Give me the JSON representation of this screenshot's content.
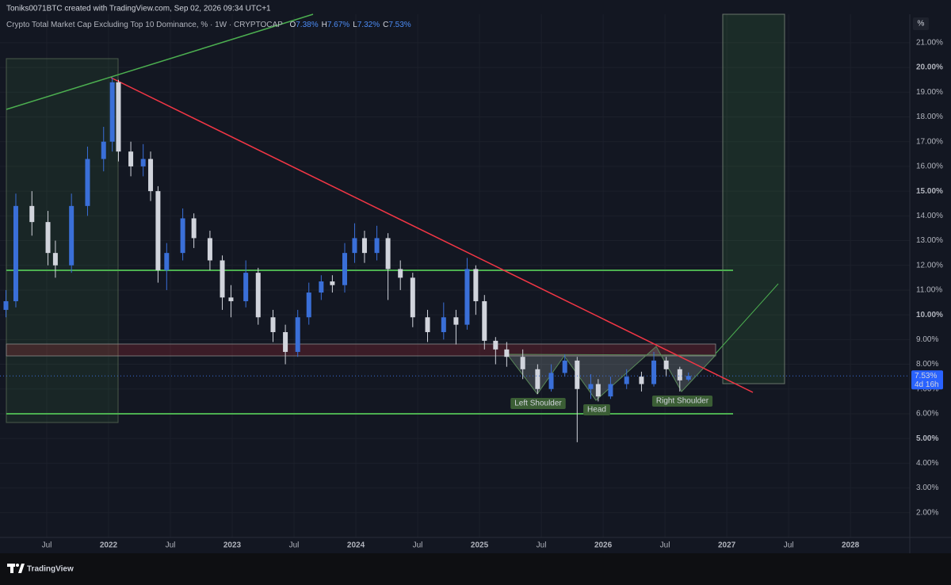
{
  "header": {
    "author_line": "Toniks0071BTC created with TradingView.com, Sep 02, 2026 09:34 UTC+1",
    "logo": "TradingView"
  },
  "chart_data": {
    "type": "candlestick",
    "title": "Crypto Total Market Cap Excluding Top 10 Dominance, % · 1W · CRYPTOCAP",
    "ohlc_legend": [
      {
        "key": "O",
        "text": "7.38%"
      },
      {
        "key": "H",
        "text": "7.67%"
      },
      {
        "key": "L",
        "text": "7.32%"
      },
      {
        "key": "C",
        "text": "7.53%"
      }
    ],
    "y_unit": "%",
    "x": [
      2021.17,
      2021.25,
      2021.38,
      2021.51,
      2021.57,
      2021.7,
      2021.83,
      2021.96,
      2022.03,
      2022.08,
      2022.18,
      2022.28,
      2022.34,
      2022.4,
      2022.47,
      2022.6,
      2022.69,
      2022.82,
      2022.92,
      2022.99,
      2023.11,
      2023.21,
      2023.33,
      2023.43,
      2023.53,
      2023.62,
      2023.72,
      2023.81,
      2023.91,
      2023.99,
      2024.07,
      2024.17,
      2024.26,
      2024.36,
      2024.46,
      2024.58,
      2024.71,
      2024.81,
      2024.9,
      2024.97,
      2025.04,
      2025.13,
      2025.22,
      2025.35,
      2025.47,
      2025.58,
      2025.69,
      2025.79,
      2025.9,
      2025.96,
      2026.06,
      2026.19,
      2026.31,
      2026.41,
      2026.51,
      2026.62,
      2026.69
    ],
    "open": [
      10.2,
      10.55,
      14.4,
      13.75,
      12.5,
      12.0,
      14.4,
      16.3,
      17.0,
      19.4,
      16.6,
      16.0,
      16.3,
      15.0,
      11.8,
      12.5,
      13.9,
      13.1,
      12.2,
      10.7,
      10.55,
      11.7,
      9.9,
      9.3,
      8.5,
      9.9,
      10.9,
      11.35,
      11.2,
      12.5,
      13.1,
      12.5,
      13.1,
      11.85,
      11.5,
      9.9,
      9.3,
      9.9,
      9.6,
      11.85,
      10.55,
      8.95,
      8.6,
      8.3,
      7.8,
      7.0,
      7.65,
      8.15,
      7.0,
      7.2,
      6.7,
      7.2,
      7.5,
      7.2,
      8.15,
      7.8,
      7.38
    ],
    "high": [
      11.0,
      14.9,
      15.0,
      14.2,
      13.0,
      14.9,
      16.8,
      17.6,
      19.6,
      19.5,
      17.0,
      16.9,
      16.6,
      15.2,
      12.9,
      14.3,
      14.1,
      13.4,
      12.4,
      11.2,
      12.2,
      11.9,
      10.2,
      9.6,
      10.2,
      11.3,
      11.6,
      11.6,
      12.9,
      13.7,
      13.4,
      13.6,
      13.3,
      12.2,
      11.7,
      10.2,
      10.5,
      10.2,
      12.3,
      12.0,
      10.8,
      9.1,
      8.9,
      8.6,
      8.0,
      8.0,
      8.4,
      8.3,
      7.6,
      7.4,
      7.5,
      7.8,
      7.7,
      8.5,
      8.3,
      7.9,
      7.67
    ],
    "low": [
      9.9,
      10.3,
      13.2,
      12.0,
      11.5,
      11.7,
      14.0,
      15.8,
      16.6,
      16.2,
      15.6,
      15.6,
      14.6,
      11.3,
      11.0,
      12.2,
      12.7,
      11.8,
      10.2,
      9.9,
      10.3,
      9.6,
      8.9,
      8.0,
      8.3,
      9.6,
      10.6,
      10.9,
      10.9,
      12.1,
      12.1,
      12.2,
      10.6,
      11.0,
      9.5,
      8.9,
      9.0,
      8.8,
      9.4,
      10.0,
      8.6,
      8.0,
      7.9,
      7.4,
      6.8,
      6.9,
      7.5,
      4.85,
      6.6,
      6.5,
      6.6,
      7.0,
      6.9,
      7.1,
      7.5,
      6.9,
      7.32
    ],
    "close": [
      10.55,
      14.4,
      13.75,
      12.5,
      12.0,
      14.4,
      16.3,
      17.0,
      19.4,
      16.6,
      16.0,
      16.3,
      15.0,
      11.8,
      12.5,
      13.9,
      13.1,
      12.2,
      10.7,
      10.55,
      11.7,
      9.9,
      9.3,
      8.5,
      9.9,
      10.9,
      11.35,
      11.2,
      12.5,
      13.1,
      12.5,
      13.1,
      11.85,
      11.5,
      9.9,
      9.3,
      9.9,
      9.6,
      11.85,
      10.55,
      8.95,
      8.6,
      8.3,
      7.8,
      7.0,
      7.65,
      8.15,
      7.0,
      7.2,
      6.7,
      7.2,
      7.5,
      7.2,
      8.15,
      7.8,
      7.35,
      7.53
    ],
    "up_color": "#3a6fd8",
    "down_color": "#d1d4dc",
    "xlim": [
      2021.122,
      2028.48
    ],
    "ylim": [
      1.0,
      22.15
    ],
    "xticks": [
      {
        "value": 2021.5,
        "label": "Jul"
      },
      2022,
      {
        "value": 2022.5,
        "label": "Jul"
      },
      2023,
      {
        "value": 2023.5,
        "label": "Jul"
      },
      2024,
      {
        "value": 2024.5,
        "label": "Jul"
      },
      2025,
      {
        "value": 2025.5,
        "label": "Jul"
      },
      2026,
      {
        "value": 2026.5,
        "label": "Jul"
      },
      2027,
      {
        "value": 2027.5,
        "label": "Jul"
      },
      2028
    ],
    "yticks": [
      {
        "value": 2,
        "label": "2.00%"
      },
      {
        "value": 3,
        "label": "3.00%"
      },
      {
        "value": 4,
        "label": "4.00%"
      },
      {
        "value": 5,
        "label": "5.00%"
      },
      {
        "value": 6,
        "label": "6.00%"
      },
      {
        "value": 7,
        "label": "7.00%"
      },
      {
        "value": 8,
        "label": "8.00%"
      },
      {
        "value": 9,
        "label": "9.00%"
      },
      {
        "value": 10,
        "label": "10.00%"
      },
      {
        "value": 11,
        "label": "11.00%"
      },
      {
        "value": 12,
        "label": "12.00%"
      },
      {
        "value": 13,
        "label": "13.00%"
      },
      {
        "value": 14,
        "label": "14.00%"
      },
      {
        "value": 15,
        "label": "15.00%"
      },
      {
        "value": 16,
        "label": "16.00%"
      },
      {
        "value": 17,
        "label": "17.00%"
      },
      {
        "value": 18,
        "label": "18.00%"
      },
      {
        "value": 19,
        "label": "19.00%"
      },
      {
        "value": 20,
        "label": "20.00%"
      },
      {
        "value": 21,
        "label": "21.00%"
      }
    ],
    "last_price": {
      "value": 7.53,
      "label": "7.53%",
      "countdown": "4d 16h"
    },
    "annotations": [
      "Left Shoulder",
      "Head",
      "Right Shoulder"
    ]
  }
}
